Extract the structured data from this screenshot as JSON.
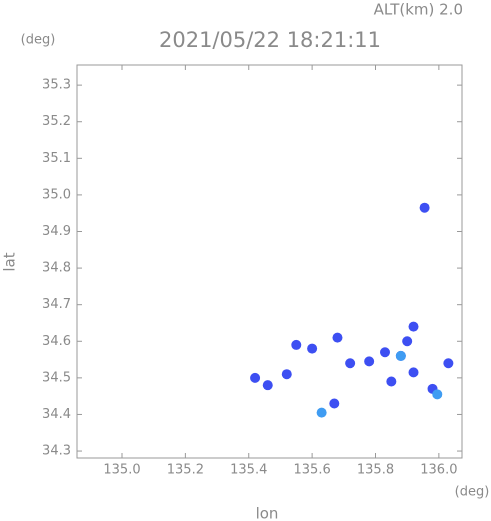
{
  "chart_data": {
    "type": "scatter",
    "title": "2021/05/22 18:21:11",
    "subtitle": "ALT(km) 2.0",
    "x_unit": "(deg)",
    "y_unit": "(deg)",
    "xlabel": "lon",
    "ylabel": "lat",
    "xlim": [
      134.858,
      136.073
    ],
    "ylim": [
      34.281,
      35.355
    ],
    "xticks": [
      {
        "value": 135,
        "label": "135.0"
      },
      135.2,
      135.4,
      135.6,
      135.8,
      {
        "value": 136,
        "label": "136.0"
      }
    ],
    "yticks": [
      34.3,
      34.4,
      34.5,
      34.6,
      34.7,
      34.8,
      34.9,
      {
        "value": 35,
        "label": "35.0"
      },
      35.1,
      35.2,
      35.3
    ],
    "series": [
      {
        "color": "#3d4ff2",
        "x": [
          135.955,
          135.68,
          135.67,
          135.88,
          135.92,
          135.98,
          135.85,
          135.78,
          135.46,
          135.42,
          135.52,
          135.55,
          136.03,
          135.92,
          135.72,
          135.6,
          135.83,
          135.9
        ],
        "y": [
          34.965,
          34.61,
          34.43,
          34.56,
          34.515,
          34.47,
          34.49,
          34.545,
          34.48,
          34.5,
          34.51,
          34.59,
          34.54,
          34.64,
          34.54,
          34.58,
          34.57,
          34.6
        ]
      },
      {
        "color": "#3f9cf2",
        "x": [
          135.63,
          135.995,
          135.88
        ],
        "y": [
          34.405,
          34.455,
          34.56
        ]
      }
    ]
  }
}
